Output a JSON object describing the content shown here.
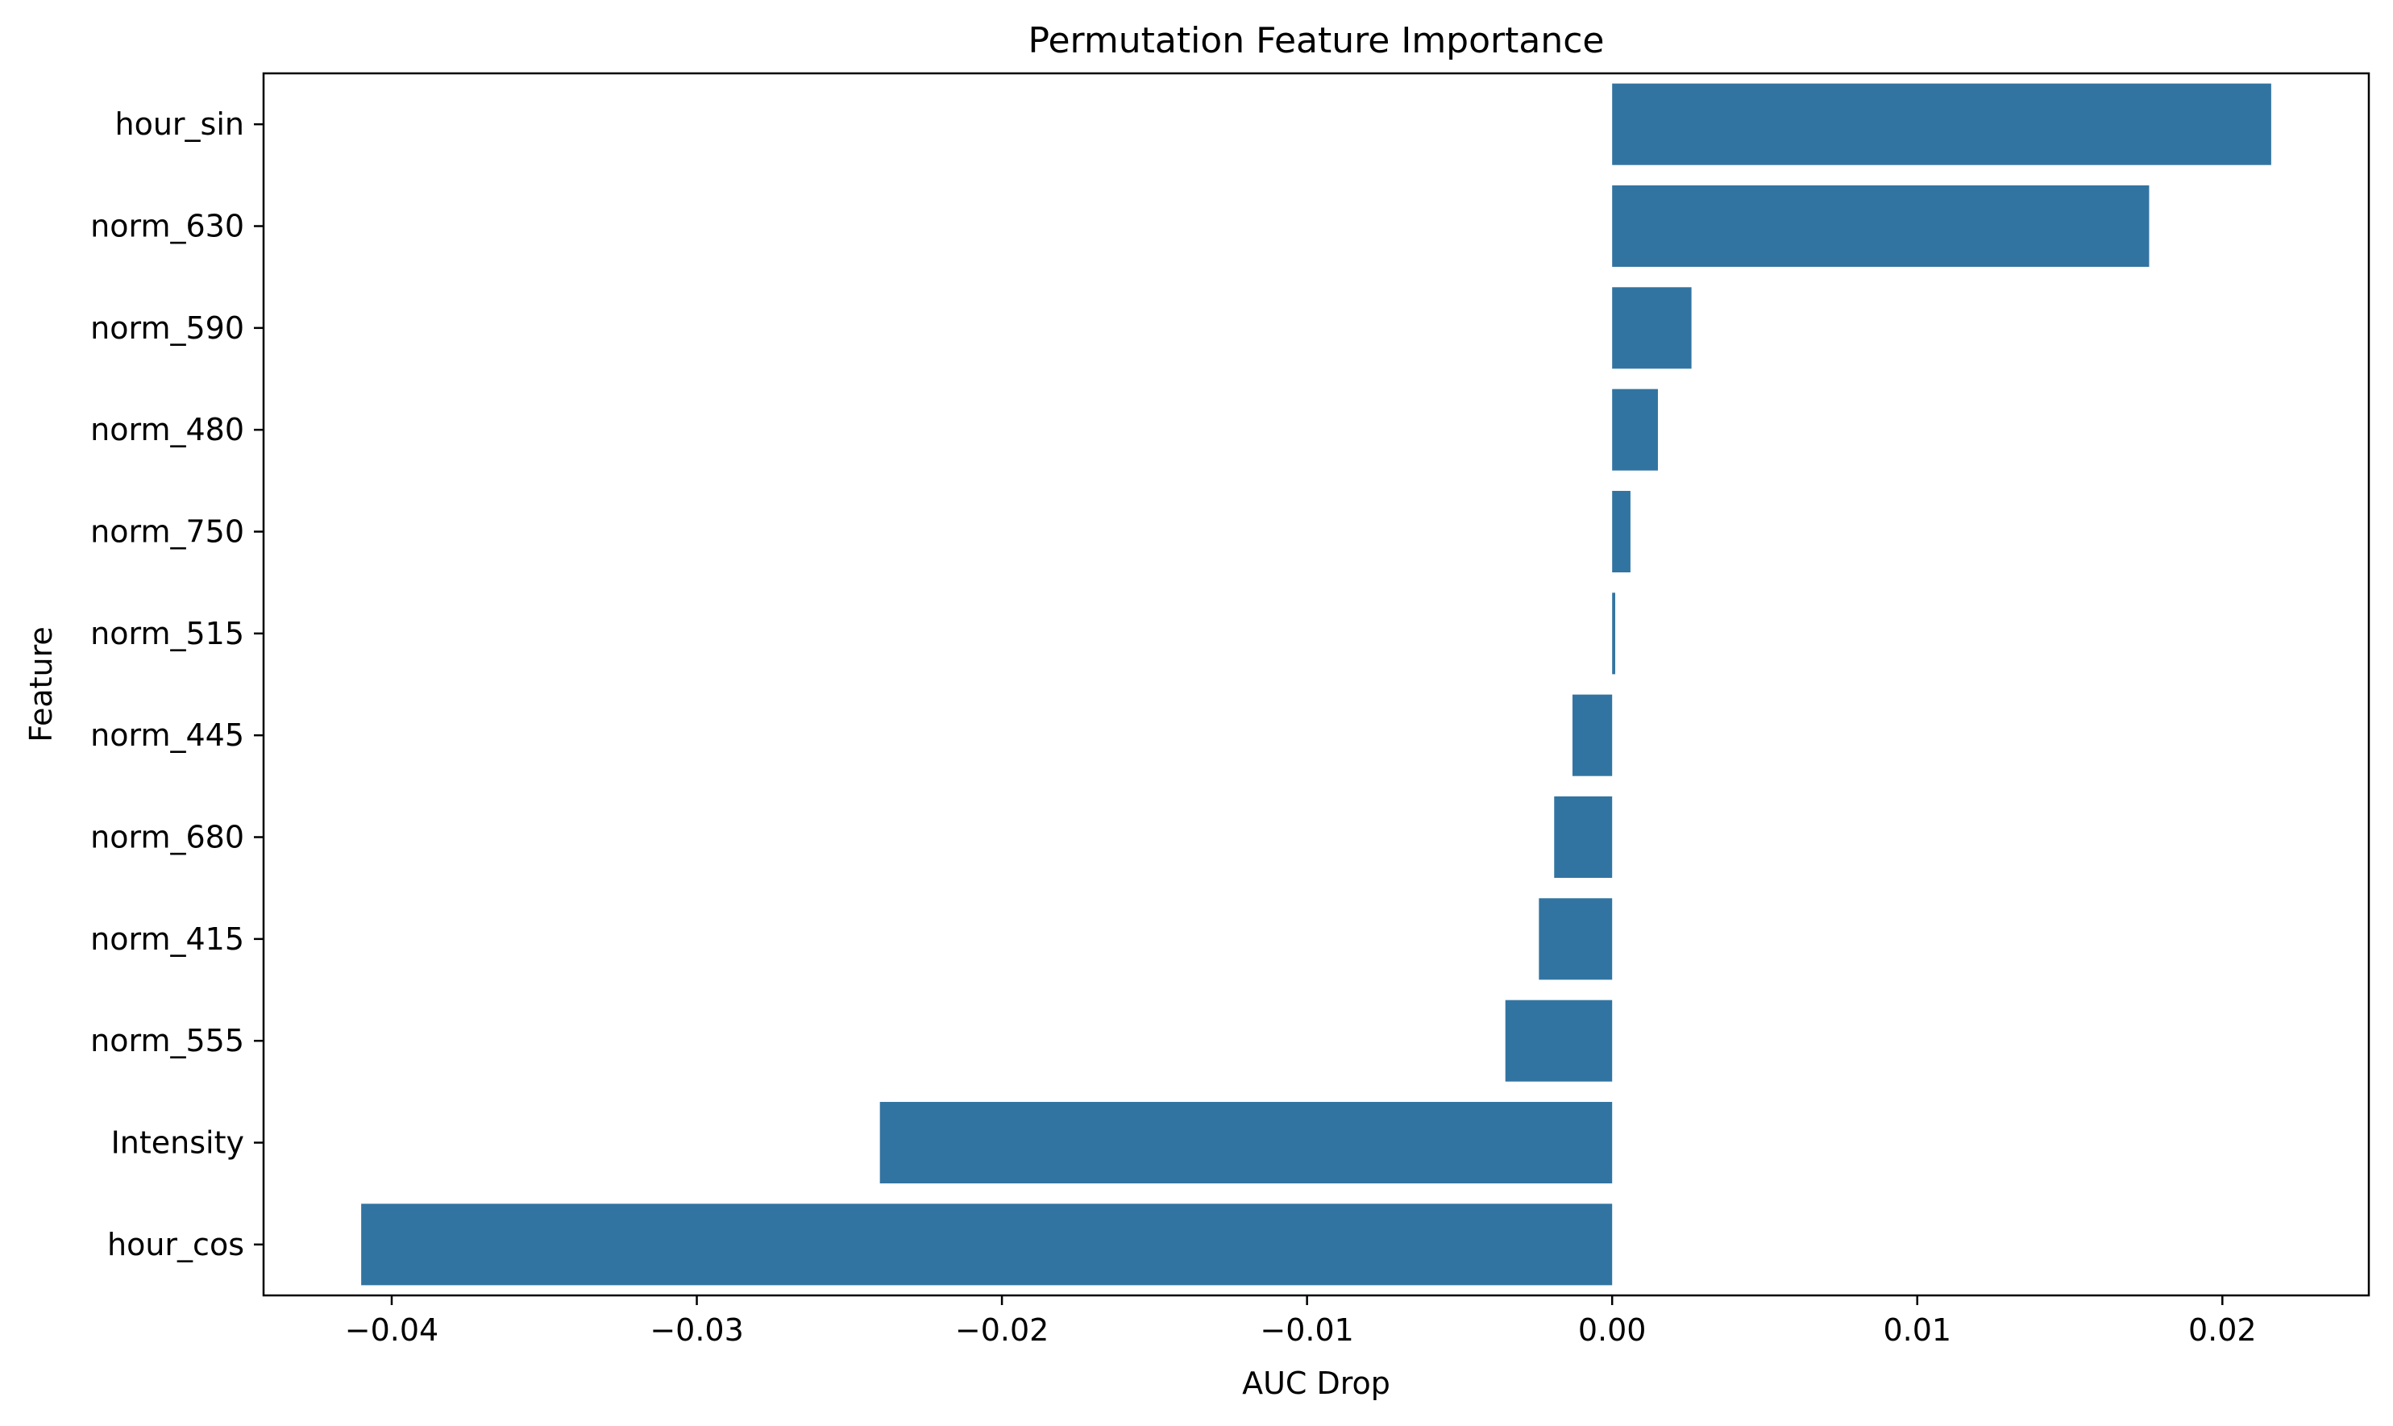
{
  "chart_data": {
    "type": "bar",
    "orientation": "horizontal",
    "title": "Permutation Feature Importance",
    "xlabel": "AUC Drop",
    "ylabel": "Feature",
    "categories": [
      "hour_sin",
      "norm_630",
      "norm_590",
      "norm_480",
      "norm_750",
      "norm_515",
      "norm_445",
      "norm_680",
      "norm_415",
      "norm_555",
      "Intensity",
      "hour_cos"
    ],
    "values": [
      0.0216,
      0.0176,
      0.0026,
      0.0015,
      0.0006,
      0.0001,
      -0.0013,
      -0.0019,
      -0.0024,
      -0.0035,
      -0.024,
      -0.041
    ],
    "xlim": [
      -0.0442,
      0.0248
    ],
    "xticks": [
      -0.04,
      -0.03,
      -0.02,
      -0.01,
      0.0,
      0.01,
      0.02
    ],
    "xtick_labels": [
      "−0.04",
      "−0.03",
      "−0.02",
      "−0.01",
      "0.00",
      "0.01",
      "0.02"
    ],
    "bar_color": "#3274a1",
    "grid": false,
    "legend": "none"
  }
}
